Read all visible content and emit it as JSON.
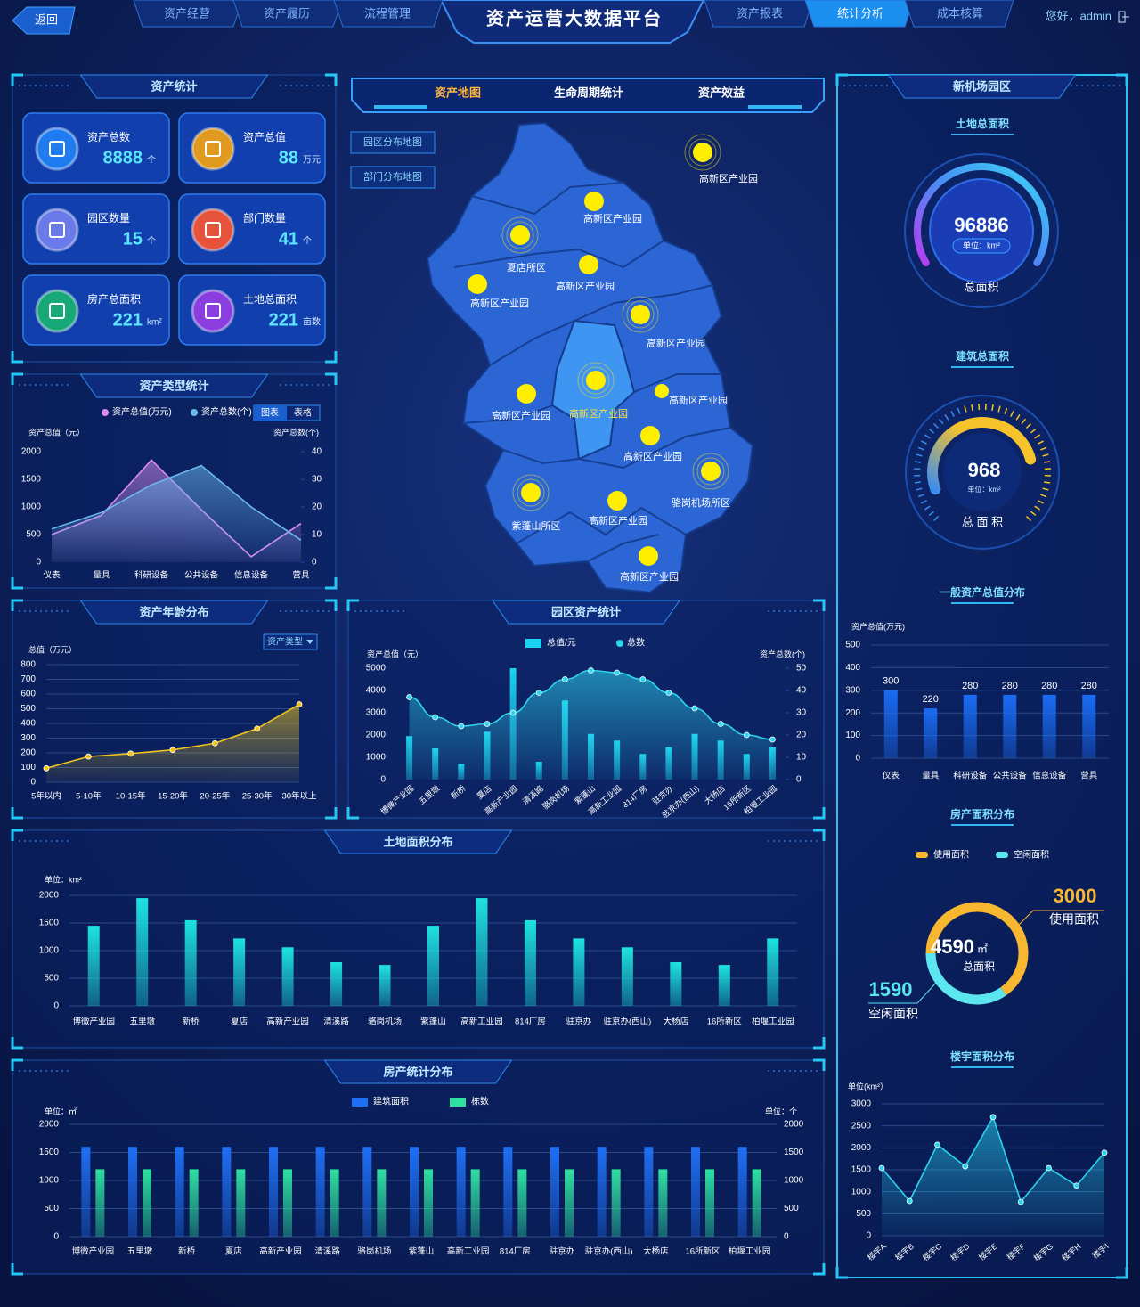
{
  "header": {
    "back": "返回",
    "title": "资产运营大数据平台",
    "nav_left": [
      "资产经营",
      "资产履历",
      "流程管理"
    ],
    "nav_right": [
      {
        "label": "资产报表",
        "active": false
      },
      {
        "label": "统计分析",
        "active": true
      },
      {
        "label": "成本核算",
        "active": false
      }
    ],
    "user": "您好，admin"
  },
  "asset_stats": {
    "title": "资产统计",
    "items": [
      {
        "label": "资产总数",
        "value": 8888,
        "unit": "个"
      },
      {
        "label": "资产总值",
        "value": 88,
        "unit": "万元"
      },
      {
        "label": "园区数量",
        "value": 15,
        "unit": "个"
      },
      {
        "label": "部门数量",
        "value": 41,
        "unit": "个"
      },
      {
        "label": "房产总面积",
        "value": 221,
        "unit": "km²"
      },
      {
        "label": "土地总面积",
        "value": 221,
        "unit": "亩数"
      }
    ]
  },
  "map": {
    "tabs": [
      "资产地图",
      "生命周期统计",
      "资产效益"
    ],
    "buttons": [
      "园区分布地图",
      "部门分布地图"
    ],
    "places": [
      "高新区产业园",
      "高新区产业园",
      "夏店所区",
      "高新区产业园",
      "高新区产业园",
      "高新区产业园",
      "高新区产业园",
      "高新区产业园",
      "高新区产业园",
      "高新区产业园",
      "骆岗机场所区",
      "紫蓬山所区",
      "高新区产业园",
      "高新区产业园"
    ]
  },
  "right_panel": {
    "title": "新机场园区",
    "land_gauge": {
      "title": "土地总面积",
      "value": 96886,
      "unit": "单位：km²",
      "label": "总面积"
    },
    "building_gauge": {
      "title": "建筑总面积",
      "value": 968,
      "unit": "单位：km²",
      "label": "总 面 积"
    }
  },
  "chart_data": [
    {
      "type": "line",
      "title": "资产类型统计",
      "toggles": [
        "图表",
        "表格"
      ],
      "y_label": "资产总值（元）",
      "y2_label": "资产总数(个)",
      "categories": [
        "仪表",
        "量具",
        "科研设备",
        "公共设备",
        "信息设备",
        "营具"
      ],
      "series": [
        {
          "name": "资产总值(万元)",
          "color": "#d98cf0",
          "area": true,
          "markers": false,
          "values": [
            500,
            850,
            1850,
            950,
            100,
            700
          ]
        },
        {
          "name": "资产总数(个)",
          "color": "#6cb8f0",
          "axis": "y2",
          "area": true,
          "markers": false,
          "values": [
            12,
            18,
            28,
            35,
            20,
            8
          ]
        }
      ],
      "ylim": [
        0,
        2000
      ],
      "yticks": [
        0,
        500,
        1000,
        1500,
        2000
      ],
      "y2lim": [
        0,
        40
      ],
      "y2ticks": [
        0,
        10,
        20,
        30,
        40
      ],
      "grid": false
    },
    {
      "type": "line",
      "title": "资产年龄分布",
      "dropdown": "资产类型",
      "y_label": "总值（万元）",
      "categories": [
        "5年以内",
        "5-10年",
        "10-15年",
        "15-20年",
        "20-25年",
        "25-30年",
        "30年以上"
      ],
      "series": [
        {
          "color": "#f0c419",
          "area": true,
          "values": [
            95,
            175,
            195,
            220,
            265,
            365,
            530
          ]
        }
      ],
      "ylim": [
        0,
        800
      ],
      "yticks": [
        0,
        100,
        200,
        300,
        400,
        500,
        600,
        700,
        800
      ],
      "grid": true
    },
    {
      "type": "bar",
      "title": "园区资产统计",
      "y_label": "资产总值（元）",
      "y2_label": "资产总数(个)",
      "categories": [
        "博微产业园",
        "五里墩",
        "新桥",
        "夏店",
        "高新产业园",
        "清溪路",
        "骆岗机场",
        "紫蓬山",
        "高新工业园",
        "814厂房",
        "驻京办",
        "驻京办(西山)",
        "大杨店",
        "16所新区",
        "柏堰工业园"
      ],
      "series": [
        {
          "name": "总值/元",
          "color": "#19d3f0",
          "values": [
            1950,
            1400,
            700,
            2150,
            5000,
            800,
            3550,
            2050,
            1750,
            1150,
            1450,
            2050,
            1750,
            1150,
            1450
          ]
        },
        {
          "name": "总数",
          "type": "line",
          "axis": "y2",
          "area": true,
          "smooth": true,
          "color": "#2fd6ef",
          "values": [
            37,
            28,
            24,
            25,
            30,
            39,
            45,
            49,
            48,
            45,
            39,
            32,
            25,
            20,
            18
          ]
        }
      ],
      "ylim": [
        0,
        5000
      ],
      "yticks": [
        0,
        1000,
        2000,
        3000,
        4000,
        5000
      ],
      "y2lim": [
        0,
        50
      ],
      "y2ticks": [
        0,
        10,
        20,
        30,
        40,
        50
      ],
      "grid": false
    },
    {
      "type": "bar",
      "title": "土地面积分布",
      "y_label": "单位：km²",
      "categories": [
        "博微产业园",
        "五里墩",
        "新桥",
        "夏店",
        "高新产业园",
        "清溪路",
        "骆岗机场",
        "紫蓬山",
        "高新工业园",
        "814厂房",
        "驻京办",
        "驻京办(西山)",
        "大杨店",
        "16所新区",
        "柏堰工业园"
      ],
      "series": [
        {
          "color": "#1de3e0",
          "values": [
            1450,
            1950,
            1550,
            1220,
            1060,
            790,
            740,
            1450,
            1950,
            1550,
            1220,
            1060,
            790,
            740,
            1220
          ]
        }
      ],
      "ylim": [
        0,
        2000
      ],
      "yticks": [
        0,
        500,
        1000,
        1500,
        2000
      ],
      "grid": true
    },
    {
      "type": "bar",
      "title": "房产统计分布",
      "y_label": "单位：㎡",
      "y2_label": "单位：个",
      "categories": [
        "博微产业园",
        "五里墩",
        "新桥",
        "夏店",
        "高新产业园",
        "清溪路",
        "骆岗机场",
        "紫蓬山",
        "高新工业园",
        "814厂房",
        "驻京办",
        "驻京办(西山)",
        "大杨店",
        "16所新区",
        "柏堰工业园"
      ],
      "series": [
        {
          "name": "建筑面积",
          "color": "#1f6ff5",
          "values": [
            1600,
            1600,
            1600,
            1600,
            1600,
            1600,
            1600,
            1600,
            1600,
            1600,
            1600,
            1600,
            1600,
            1600,
            1600
          ]
        },
        {
          "name": "栋数",
          "color": "#2fe0a0",
          "axis": "y2",
          "values": [
            1200,
            1200,
            1200,
            1200,
            1200,
            1200,
            1200,
            1200,
            1200,
            1200,
            1200,
            1200,
            1200,
            1200,
            1200
          ]
        }
      ],
      "ylim": [
        0,
        2000
      ],
      "yticks": [
        0,
        500,
        1000,
        1500,
        2000
      ],
      "y2lim": [
        0,
        2000
      ],
      "y2ticks": [
        0,
        500,
        1000,
        1500,
        2000
      ],
      "grid": true
    },
    {
      "type": "bar",
      "title": "一般资产总值分布",
      "y_label": "资产总值(万元)",
      "data_labels": true,
      "categories": [
        "仪表",
        "量具",
        "科研设备",
        "公共设备",
        "信息设备",
        "营具"
      ],
      "series": [
        {
          "color": "#1a6cf5",
          "values": [
            300,
            220,
            280,
            280,
            280,
            280
          ]
        }
      ],
      "ylim": [
        0,
        500
      ],
      "yticks": [
        0,
        100,
        200,
        300,
        400,
        500
      ],
      "grid": true
    },
    {
      "type": "pie",
      "title": "房产面积分布",
      "categories": [
        "使用面积",
        "空闲面积"
      ],
      "values": [
        3000,
        1590
      ],
      "colors": [
        "#f7b731",
        "#5ce6ef"
      ],
      "total": 4590,
      "total_unit": "㎡",
      "total_label": "总面积"
    },
    {
      "type": "line",
      "title": "楼宇面积分布",
      "y_label": "单位(km²）",
      "categories": [
        "楼宇A",
        "楼宇B",
        "楼宇C",
        "楼宇D",
        "楼宇E",
        "楼宇F",
        "楼宇G",
        "楼宇H",
        "楼宇I"
      ],
      "series": [
        {
          "color": "#2ad4f0",
          "area": true,
          "values": [
            1540,
            790,
            2070,
            1580,
            2700,
            770,
            1540,
            1140,
            1890
          ]
        }
      ],
      "ylim": [
        0,
        3000
      ],
      "yticks": [
        0,
        500,
        1000,
        1500,
        2000,
        2500,
        3000
      ],
      "grid": true
    }
  ]
}
